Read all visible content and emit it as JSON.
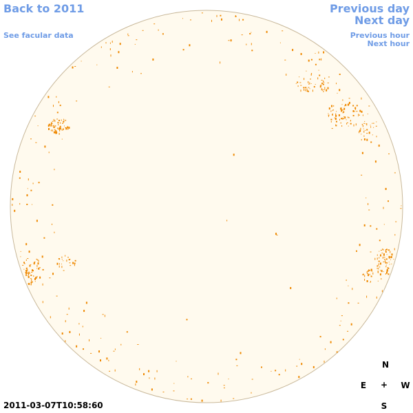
{
  "nav": {
    "back_year": "Back to 2011",
    "facular": "See facular data",
    "previous_day": "Previous day",
    "next_day": "Next day",
    "previous_hour": "Previous hour",
    "next_hour": "Next hour"
  },
  "compass": {
    "north": "N",
    "south": "S",
    "east": "E",
    "west": "W",
    "center": "+"
  },
  "timestamp": "2011-03-07T10:58:60",
  "colors": {
    "link": "#6f9ce6",
    "disk_fill": "#fffaee",
    "disk_edge": "#c8b89a",
    "feature": "#ee8800"
  }
}
